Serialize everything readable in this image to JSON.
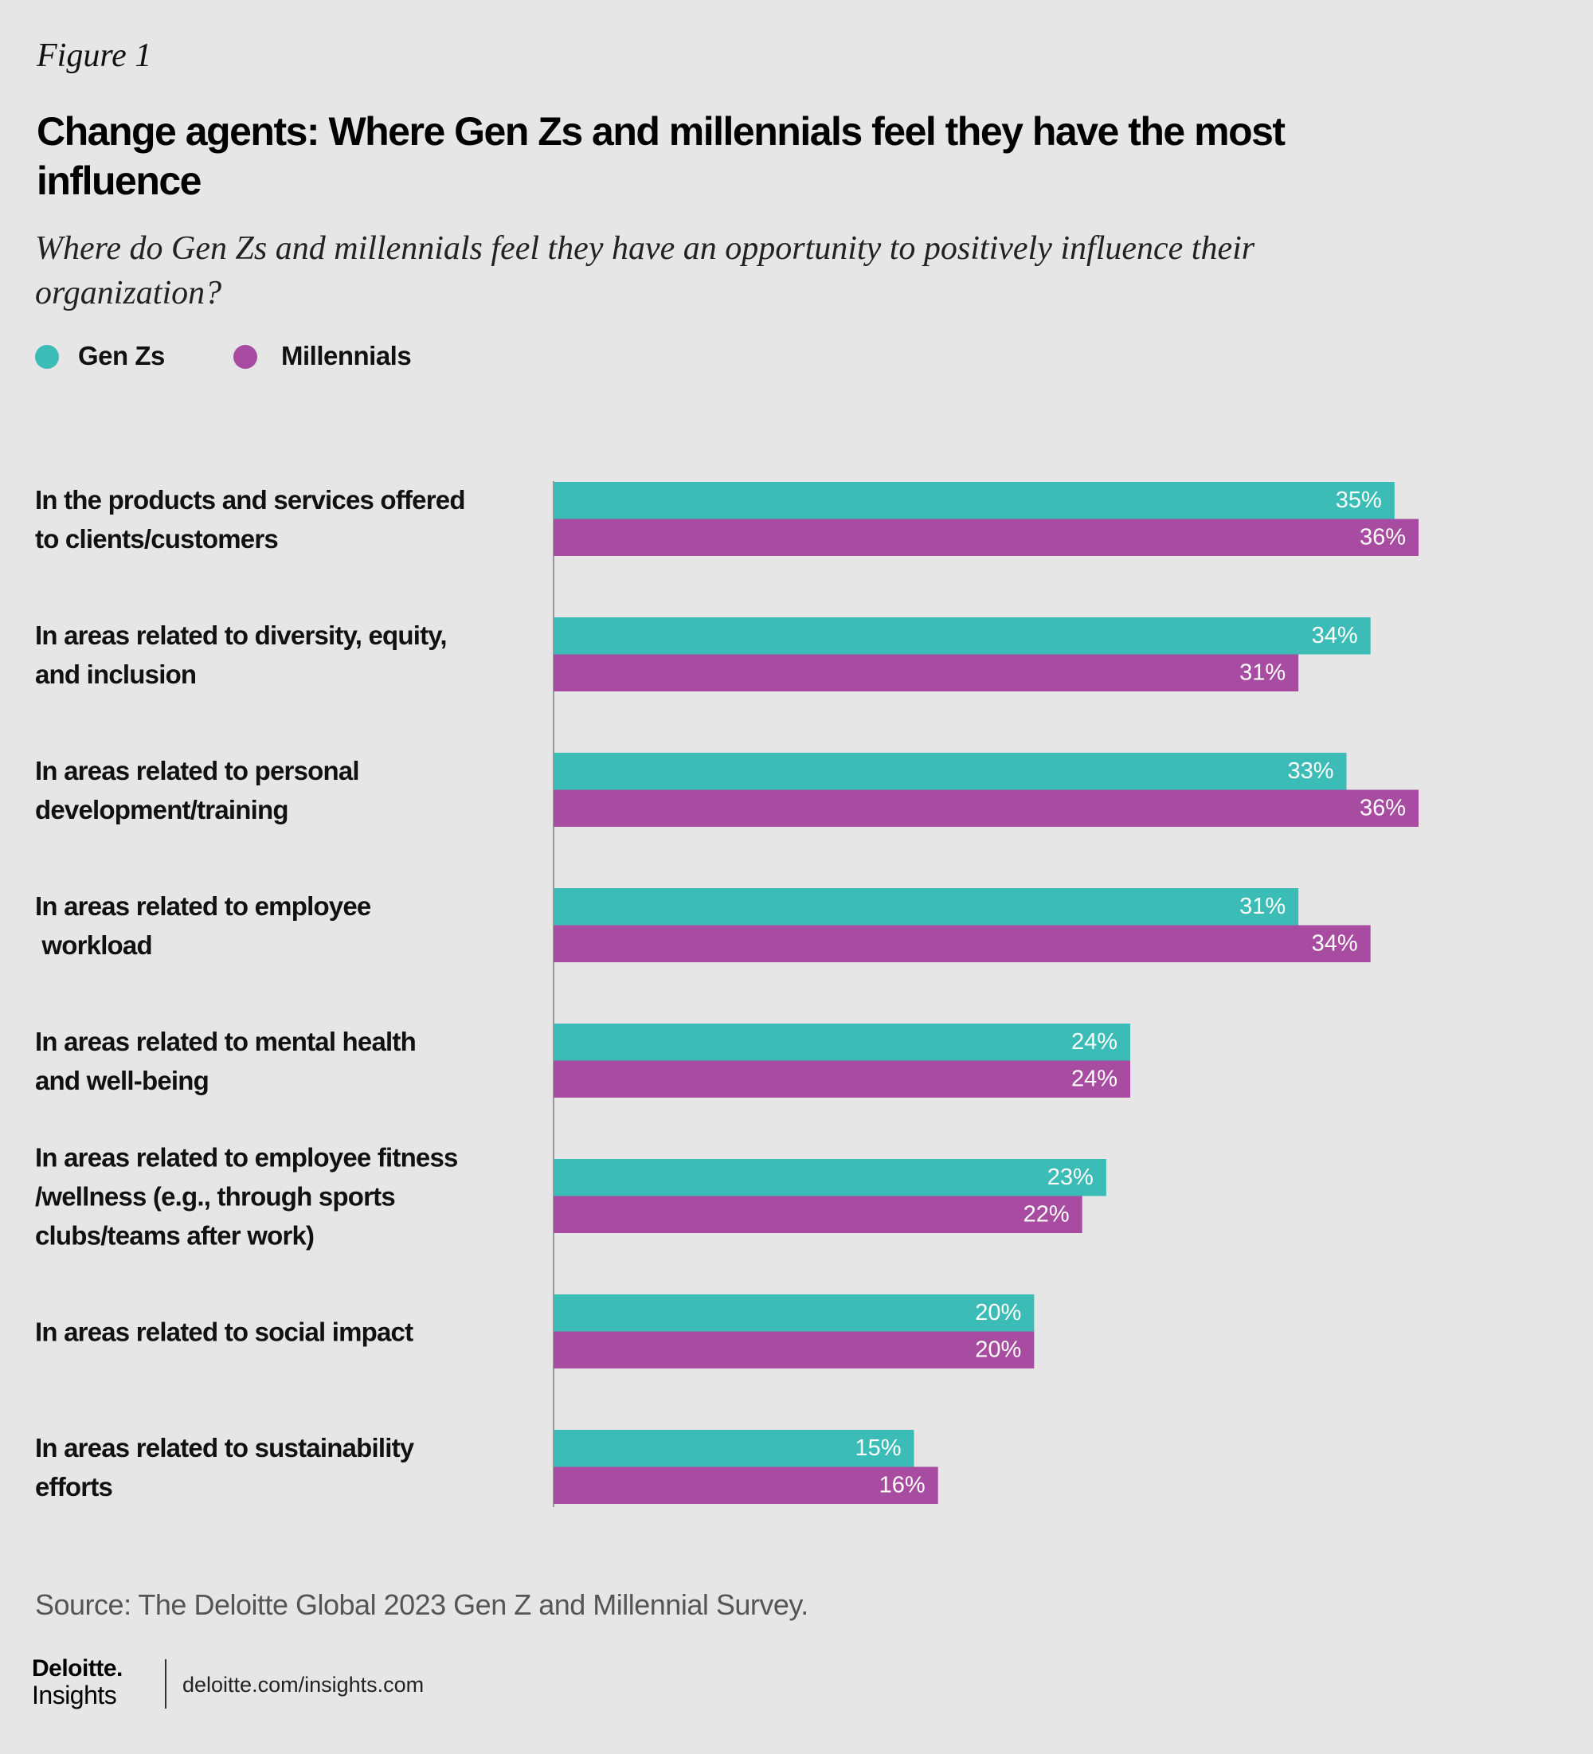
{
  "chart_data": {
    "type": "bar",
    "orientation": "horizontal",
    "figure_label": "Figure 1",
    "title": "Change agents: Where Gen Zs and millennials feel they have the most influence",
    "subtitle": "Where do Gen Zs and millennials feel they have an opportunity to positively influence their organization?",
    "categories": [
      "In the products and services offered\nto clients/customers",
      "In areas related to diversity, equity,\nand inclusion",
      "In areas related to personal\ndevelopment/training",
      "In areas related to employee\n workload",
      "In areas related to mental health\nand well-being",
      "In areas related to employee fitness\n/wellness (e.g., through sports\nclubs/teams after work)",
      "In areas related to social impact",
      "In areas related to sustainability\nefforts"
    ],
    "series": [
      {
        "name": "Gen Zs",
        "color": "#3bbcb6",
        "values": [
          35,
          34,
          33,
          31,
          24,
          23,
          20,
          15
        ],
        "value_labels": [
          "35%",
          "34%",
          "33%",
          "31%",
          "24%",
          "23%",
          "20%",
          "15%"
        ]
      },
      {
        "name": "Millennials",
        "color": "#a74ca0",
        "values": [
          36,
          31,
          36,
          34,
          24,
          22,
          20,
          16
        ],
        "value_labels": [
          "36%",
          "31%",
          "36%",
          "34%",
          "24%",
          "22%",
          "20%",
          "16%"
        ]
      }
    ],
    "source": "Source: The Deloitte Global 2023 Gen Z and Millennial Survey."
  },
  "footer": {
    "brand": "Deloitte.",
    "brand_sub": "Insights",
    "url": "deloitte.com/insights.com"
  }
}
